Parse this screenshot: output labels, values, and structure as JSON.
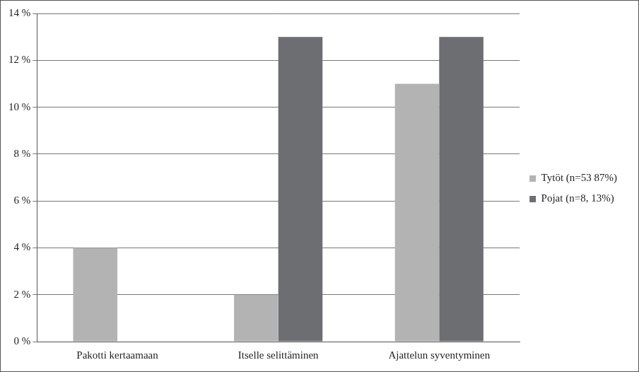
{
  "chart_data": {
    "type": "bar",
    "categories": [
      "Pakotti kertaamaan",
      "Itselle selittäminen",
      "Ajattelun syventyminen"
    ],
    "series": [
      {
        "name": "Tytöt (n=53 87%)",
        "color": "#b3b3b3",
        "values": [
          4,
          2,
          11
        ]
      },
      {
        "name": "Pojat (n=8, 13%)",
        "color": "#6d6e71",
        "values": [
          0,
          13,
          13
        ]
      }
    ],
    "ylim": [
      0,
      14
    ],
    "yticks": [
      {
        "value": 0,
        "label": "0 %"
      },
      {
        "value": 2,
        "label": "2 %"
      },
      {
        "value": 4,
        "label": "4 %"
      },
      {
        "value": 6,
        "label": "6 %"
      },
      {
        "value": 8,
        "label": "8 %"
      },
      {
        "value": 10,
        "label": "10 %"
      },
      {
        "value": 12,
        "label": "12 %"
      },
      {
        "value": 14,
        "label": "14 %"
      }
    ],
    "grid": true,
    "legend": "right"
  }
}
